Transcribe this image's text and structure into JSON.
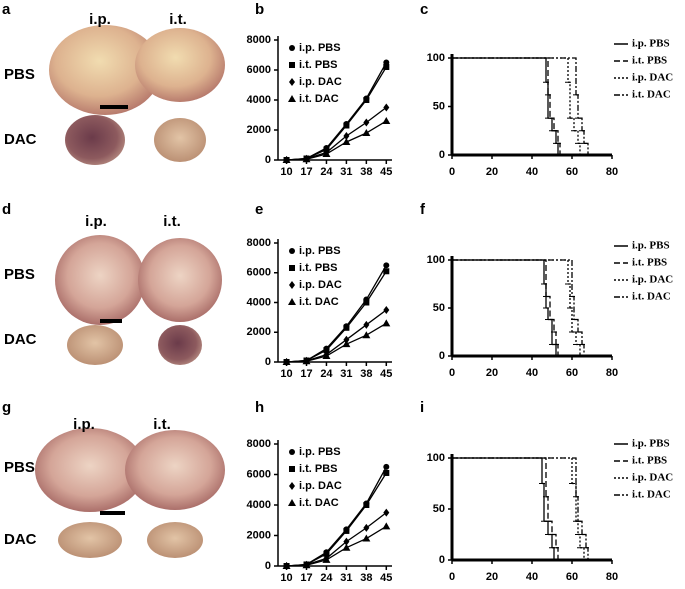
{
  "photo_panels": [
    {
      "label": "a",
      "columns": [
        "i.p.",
        "i.t."
      ],
      "rows": [
        "PBS",
        "DAC"
      ]
    },
    {
      "label": "d",
      "columns": [
        "i.p.",
        "i.t."
      ],
      "rows": [
        "PBS",
        "DAC"
      ]
    },
    {
      "label": "g",
      "columns": [
        "i.p.",
        "i.t."
      ],
      "rows": [
        "PBS",
        "DAC"
      ]
    }
  ],
  "chart_data": [
    {
      "type": "line",
      "panel": "b",
      "x": [
        10,
        17,
        24,
        31,
        38,
        45
      ],
      "xlim": [
        7,
        47
      ],
      "xticks": [
        10,
        17,
        24,
        31,
        38,
        45
      ],
      "ylim": [
        0,
        8000
      ],
      "yticks": [
        0,
        2000,
        4000,
        6000,
        8000
      ],
      "legend": "upper left",
      "series": [
        {
          "name": "i.p. PBS",
          "color": "#000000",
          "marker": "circle",
          "values": [
            0,
            100,
            800,
            2400,
            4100,
            6500
          ]
        },
        {
          "name": "i.t. PBS",
          "color": "#000000",
          "marker": "square",
          "values": [
            0,
            100,
            700,
            2300,
            4000,
            6200
          ]
        },
        {
          "name": "i.p. DAC",
          "color": "#000000",
          "marker": "diamond",
          "values": [
            0,
            80,
            500,
            1600,
            2500,
            3500
          ]
        },
        {
          "name": "i.t. DAC",
          "color": "#000000",
          "marker": "triangle",
          "values": [
            0,
            50,
            400,
            1200,
            1800,
            2600
          ]
        }
      ]
    },
    {
      "type": "survival",
      "panel": "c",
      "xlim": [
        0,
        80
      ],
      "xticks": [
        0,
        20,
        40,
        60,
        80
      ],
      "ylim": [
        0,
        100
      ],
      "yticks": [
        0,
        50,
        100
      ],
      "legend": "right",
      "series": [
        {
          "name": "i.p. PBS",
          "color": "#000000",
          "linestyle": "solid",
          "x": [
            0,
            47,
            48,
            50,
            52,
            53
          ],
          "values": [
            100,
            75,
            38,
            25,
            12,
            0
          ]
        },
        {
          "name": "i.t. PBS",
          "color": "#000000",
          "linestyle": "dashed",
          "x": [
            0,
            48,
            49,
            51,
            53,
            54
          ],
          "values": [
            100,
            62,
            38,
            25,
            12,
            0
          ]
        },
        {
          "name": "i.p. DAC",
          "color": "#000000",
          "linestyle": "dotted",
          "x": [
            0,
            58,
            59,
            61,
            63,
            64
          ],
          "values": [
            100,
            75,
            38,
            25,
            12,
            0
          ]
        },
        {
          "name": "i.t. DAC",
          "color": "#000000",
          "linestyle": "dashdot",
          "x": [
            0,
            62,
            63,
            65,
            66,
            68
          ],
          "values": [
            100,
            62,
            38,
            25,
            12,
            0
          ]
        }
      ]
    },
    {
      "type": "line",
      "panel": "e",
      "x": [
        10,
        17,
        24,
        31,
        38,
        45
      ],
      "xlim": [
        7,
        47
      ],
      "xticks": [
        10,
        17,
        24,
        31,
        38,
        45
      ],
      "ylim": [
        0,
        8000
      ],
      "yticks": [
        0,
        2000,
        4000,
        6000,
        8000
      ],
      "legend": "upper left",
      "series": [
        {
          "name": "i.p. PBS",
          "color": "#000000",
          "marker": "circle",
          "values": [
            0,
            100,
            900,
            2400,
            4200,
            6500
          ]
        },
        {
          "name": "i.t. PBS",
          "color": "#000000",
          "marker": "square",
          "values": [
            0,
            100,
            800,
            2300,
            4000,
            6100
          ]
        },
        {
          "name": "i.p. DAC",
          "color": "#000000",
          "marker": "diamond",
          "values": [
            0,
            80,
            500,
            1500,
            2500,
            3500
          ]
        },
        {
          "name": "i.t. DAC",
          "color": "#000000",
          "marker": "triangle",
          "values": [
            0,
            50,
            400,
            1200,
            1800,
            2600
          ]
        }
      ]
    },
    {
      "type": "survival",
      "panel": "f",
      "xlim": [
        0,
        80
      ],
      "xticks": [
        0,
        20,
        40,
        60,
        80
      ],
      "ylim": [
        0,
        100
      ],
      "yticks": [
        0,
        50,
        100
      ],
      "legend": "right",
      "series": [
        {
          "name": "i.p. PBS",
          "color": "#000000",
          "linestyle": "solid",
          "x": [
            0,
            46,
            47,
            48,
            50,
            52
          ],
          "values": [
            100,
            75,
            50,
            38,
            12,
            0
          ]
        },
        {
          "name": "i.t. PBS",
          "color": "#000000",
          "linestyle": "dashed",
          "x": [
            0,
            47,
            49,
            51,
            52,
            53
          ],
          "values": [
            100,
            62,
            38,
            25,
            12,
            0
          ]
        },
        {
          "name": "i.p. DAC",
          "color": "#000000",
          "linestyle": "dotted",
          "x": [
            0,
            58,
            59,
            60,
            62,
            64
          ],
          "values": [
            100,
            75,
            50,
            25,
            12,
            0
          ]
        },
        {
          "name": "i.t. DAC",
          "color": "#000000",
          "linestyle": "dashdot",
          "x": [
            0,
            60,
            61,
            63,
            65,
            66
          ],
          "values": [
            100,
            62,
            38,
            25,
            12,
            0
          ]
        }
      ]
    },
    {
      "type": "line",
      "panel": "h",
      "x": [
        10,
        17,
        24,
        31,
        38,
        45
      ],
      "xlim": [
        7,
        47
      ],
      "xticks": [
        10,
        17,
        24,
        31,
        38,
        45
      ],
      "ylim": [
        0,
        8000
      ],
      "yticks": [
        0,
        2000,
        4000,
        6000,
        8000
      ],
      "legend": "upper left",
      "series": [
        {
          "name": "i.p. PBS",
          "color": "#000000",
          "marker": "circle",
          "values": [
            0,
            100,
            900,
            2400,
            4100,
            6500
          ]
        },
        {
          "name": "i.t. PBS",
          "color": "#000000",
          "marker": "square",
          "values": [
            0,
            100,
            800,
            2300,
            4000,
            6100
          ]
        },
        {
          "name": "i.p. DAC",
          "color": "#000000",
          "marker": "diamond",
          "values": [
            0,
            80,
            500,
            1600,
            2500,
            3500
          ]
        },
        {
          "name": "i.t. DAC",
          "color": "#000000",
          "marker": "triangle",
          "values": [
            0,
            50,
            400,
            1200,
            1800,
            2600
          ]
        }
      ]
    },
    {
      "type": "survival",
      "panel": "i",
      "xlim": [
        0,
        80
      ],
      "xticks": [
        0,
        20,
        40,
        60,
        80
      ],
      "ylim": [
        0,
        100
      ],
      "yticks": [
        0,
        50,
        100
      ],
      "legend": "right",
      "series": [
        {
          "name": "i.p. PBS",
          "color": "#000000",
          "linestyle": "solid",
          "x": [
            0,
            45,
            46,
            48,
            50,
            51
          ],
          "values": [
            100,
            75,
            38,
            25,
            12,
            0
          ]
        },
        {
          "name": "i.t. PBS",
          "color": "#000000",
          "linestyle": "dashed",
          "x": [
            0,
            47,
            48,
            50,
            52,
            53
          ],
          "values": [
            100,
            62,
            38,
            25,
            12,
            0
          ]
        },
        {
          "name": "i.p. DAC",
          "color": "#000000",
          "linestyle": "dotted",
          "x": [
            0,
            60,
            62,
            63,
            64,
            66
          ],
          "values": [
            100,
            75,
            38,
            25,
            12,
            0
          ]
        },
        {
          "name": "i.t. DAC",
          "color": "#000000",
          "linestyle": "dashdot",
          "x": [
            0,
            62,
            63,
            65,
            67,
            68
          ],
          "values": [
            100,
            62,
            38,
            25,
            12,
            0
          ]
        }
      ]
    }
  ]
}
